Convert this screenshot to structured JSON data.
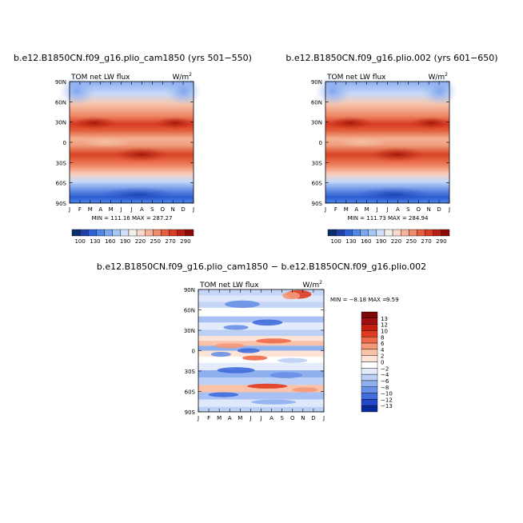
{
  "chart_data": [
    {
      "type": "heatmap",
      "title": "b.e12.B1850CN.f09_g16.plio_cam1850 (yrs 501−550)",
      "left_label": "TOM net LW flux",
      "units": "W/m",
      "units_sup": "2",
      "months": [
        "J",
        "F",
        "M",
        "A",
        "M",
        "J",
        "J",
        "A",
        "S",
        "O",
        "N",
        "D",
        "J"
      ],
      "lats": [
        "90N",
        "60N",
        "30N",
        "0",
        "30S",
        "60S",
        "90S"
      ],
      "stats": "MIN = 111.16  MAX = 287.27",
      "levels": [
        100,
        130,
        160,
        190,
        220,
        250,
        270,
        290
      ],
      "colorbar_labels": [
        "100",
        "130",
        "160",
        "190",
        "220",
        "250",
        "270",
        "290"
      ]
    },
    {
      "type": "heatmap",
      "title": "b.e12.B1850CN.f09_g16.plio.002 (yrs 601−650)",
      "left_label": "TOM net LW flux",
      "units": "W/m",
      "units_sup": "2",
      "months": [
        "J",
        "F",
        "M",
        "A",
        "M",
        "J",
        "J",
        "A",
        "S",
        "O",
        "N",
        "D",
        "J"
      ],
      "lats": [
        "90N",
        "60N",
        "30N",
        "0",
        "30S",
        "60S",
        "90S"
      ],
      "stats": "MIN = 111.73  MAX = 284.94",
      "levels": [
        100,
        130,
        160,
        190,
        220,
        250,
        270,
        290
      ],
      "colorbar_labels": [
        "100",
        "130",
        "160",
        "190",
        "220",
        "250",
        "270",
        "290"
      ]
    },
    {
      "type": "heatmap",
      "title": "b.e12.B1850CN.f09_g16.plio_cam1850 − b.e12.B1850CN.f09_g16.plio.002",
      "left_label": "TOM net LW flux",
      "units": "W/m",
      "units_sup": "2",
      "months": [
        "J",
        "F",
        "M",
        "A",
        "M",
        "J",
        "J",
        "A",
        "S",
        "O",
        "N",
        "D",
        "J"
      ],
      "lats": [
        "90N",
        "60N",
        "30N",
        "0",
        "30S",
        "60S",
        "90S"
      ],
      "stats_min": "MIN =   −8.18  MAX =",
      "stats_max": "9.59",
      "levels": [
        -13,
        -12,
        -10,
        -8,
        -6,
        -4,
        -2,
        0,
        2,
        4,
        6,
        8,
        10,
        12,
        13
      ],
      "colorbar_labels": [
        "13",
        "12",
        "10",
        "8",
        "6",
        "4",
        "2",
        "0",
        "−2",
        "−4",
        "−6",
        "−8",
        "−10",
        "−12",
        "−13"
      ]
    }
  ],
  "colors": {
    "seq_bar": [
      "#08306b",
      "#1f3fa8",
      "#2b62d8",
      "#4f86e8",
      "#7aa8f0",
      "#a6c6f5",
      "#cfe0f8",
      "#f3efe8",
      "#f8d8c8",
      "#f5b39a",
      "#ef8a6c",
      "#e85c3f",
      "#d83a22",
      "#b51e10",
      "#8b0a05"
    ],
    "diff_bar": [
      "#7a0808",
      "#a01010",
      "#c81e10",
      "#e03a20",
      "#ee6a48",
      "#f59878",
      "#fac2a8",
      "#fde4d6",
      "#ffffff",
      "#e4ecfb",
      "#bcd0f6",
      "#8fb0ef",
      "#6890e6",
      "#3f6ddc",
      "#2248c8",
      "#0a2a9a"
    ]
  }
}
